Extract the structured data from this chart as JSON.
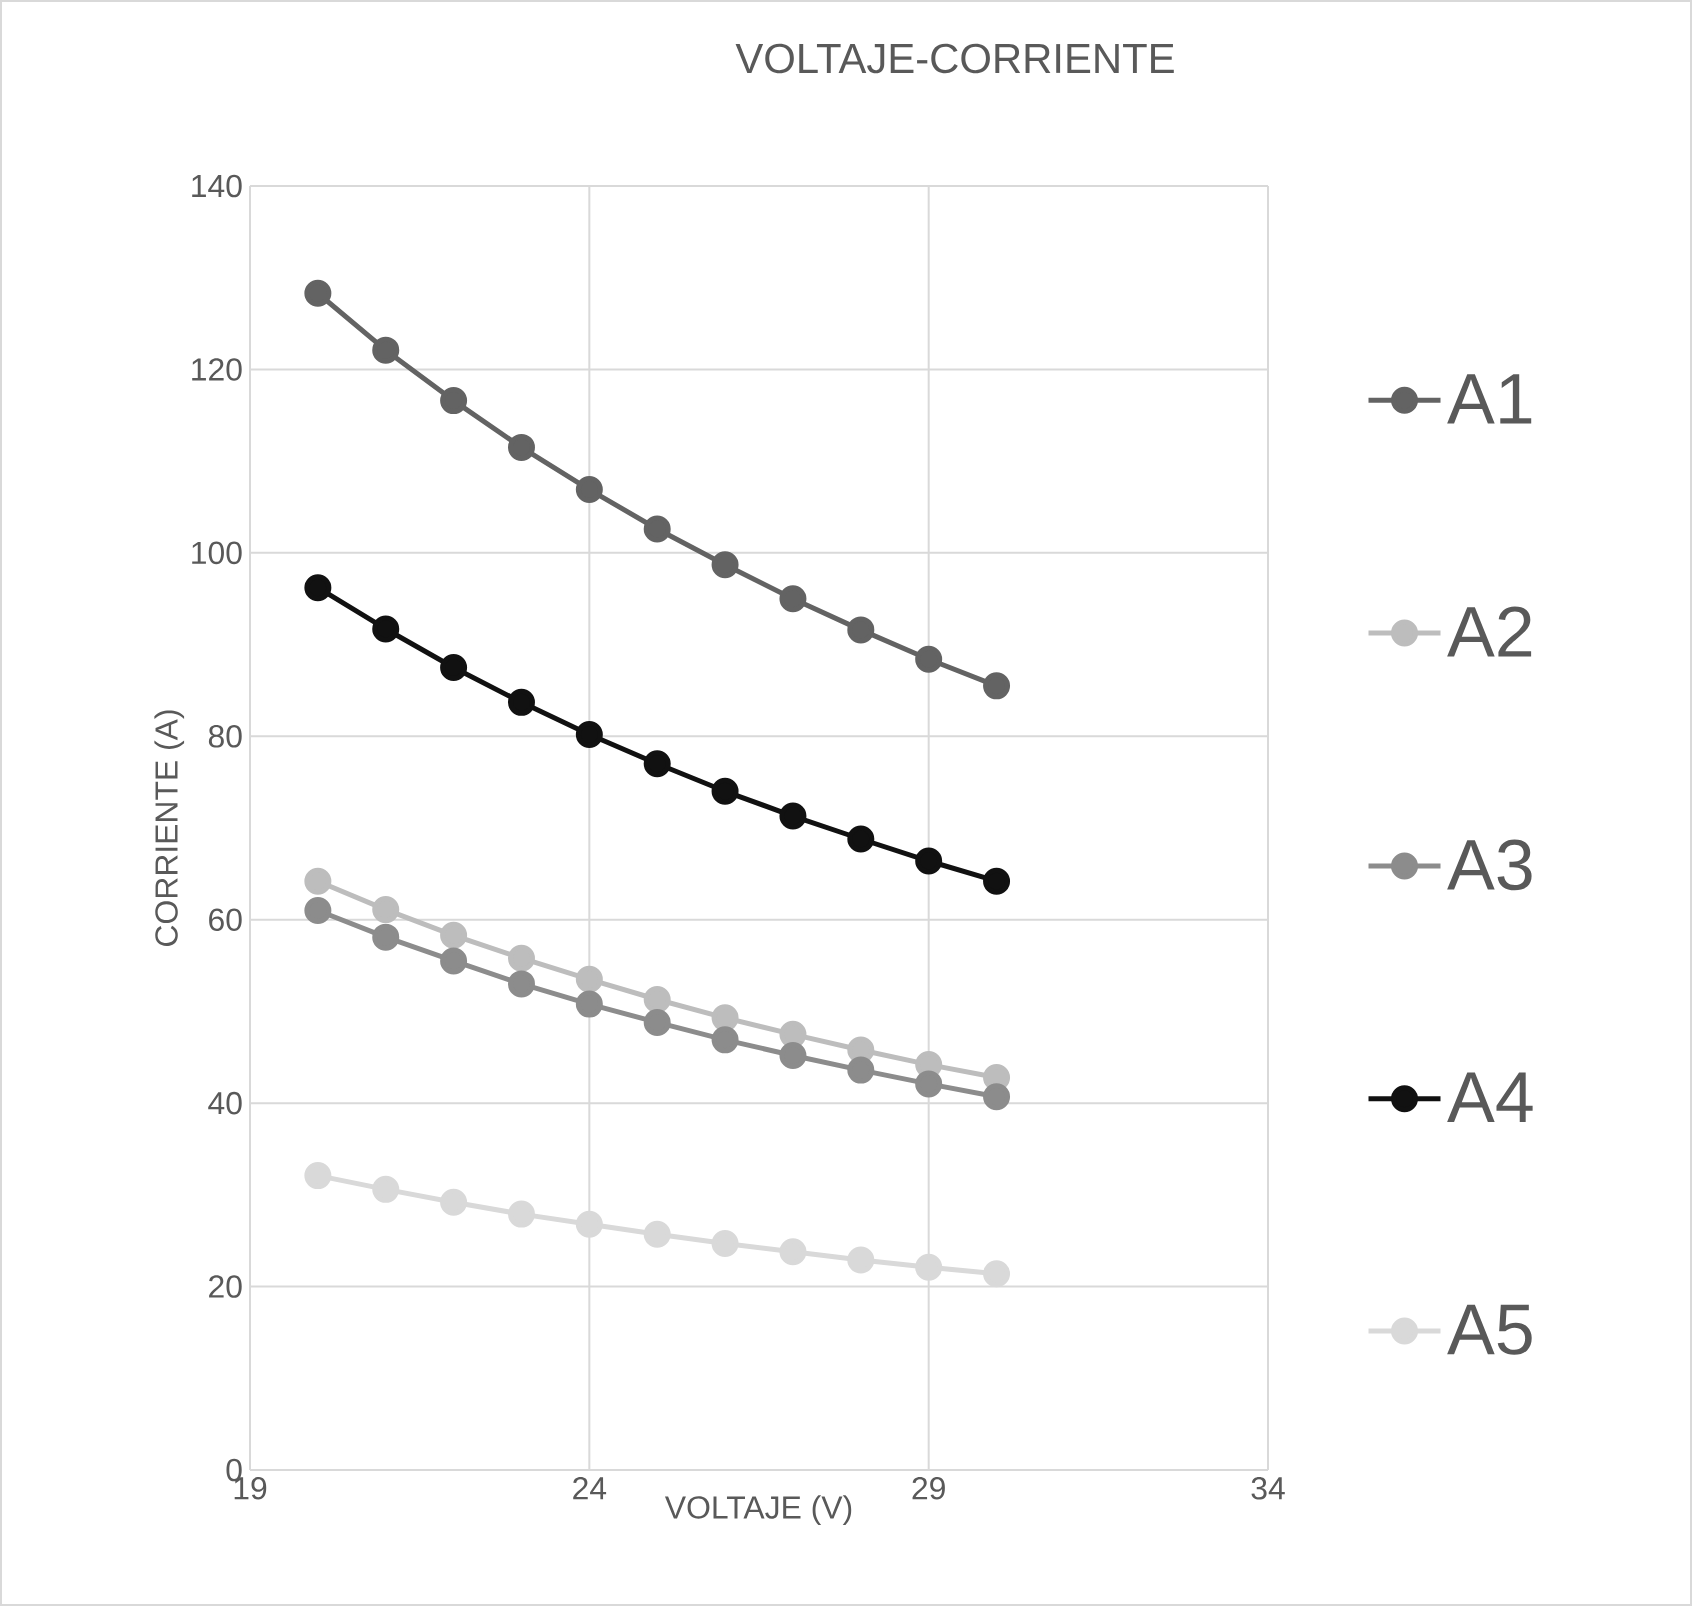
{
  "chart_data": {
    "type": "line",
    "title": "VOLTAJE-CORRIENTE",
    "xlabel": "VOLTAJE (V)",
    "ylabel": "CORRIENTE (A)",
    "x": [
      20,
      21,
      22,
      23,
      24,
      25,
      26,
      27,
      28,
      29,
      30
    ],
    "series": [
      {
        "name": "A1",
        "color": "#636363",
        "values": [
          128.3,
          122.1,
          116.6,
          111.5,
          106.9,
          102.6,
          98.7,
          95.0,
          91.6,
          88.4,
          85.5
        ]
      },
      {
        "name": "A2",
        "color": "#bdbdbd",
        "values": [
          64.2,
          61.1,
          58.3,
          55.8,
          53.5,
          51.3,
          49.3,
          47.5,
          45.8,
          44.2,
          42.8
        ]
      },
      {
        "name": "A3",
        "color": "#8c8c8c",
        "values": [
          61.0,
          58.1,
          55.5,
          53.0,
          50.8,
          48.8,
          46.9,
          45.2,
          43.6,
          42.1,
          40.7
        ]
      },
      {
        "name": "A4",
        "color": "#111111",
        "values": [
          96.2,
          91.7,
          87.5,
          83.7,
          80.2,
          77.0,
          74.0,
          71.3,
          68.8,
          66.4,
          64.2
        ]
      },
      {
        "name": "A5",
        "color": "#d9d9d9",
        "values": [
          32.1,
          30.6,
          29.2,
          27.9,
          26.8,
          25.7,
          24.7,
          23.8,
          22.9,
          22.1,
          21.4
        ]
      }
    ],
    "xlim": [
      19,
      34
    ],
    "xticks": [
      19,
      24,
      29,
      34
    ],
    "ylim": [
      0,
      140
    ],
    "yticks": [
      0,
      20,
      40,
      60,
      80,
      100,
      120,
      140
    ],
    "grid": true,
    "legend": "right",
    "marker": "circle",
    "line_style": "solid"
  }
}
